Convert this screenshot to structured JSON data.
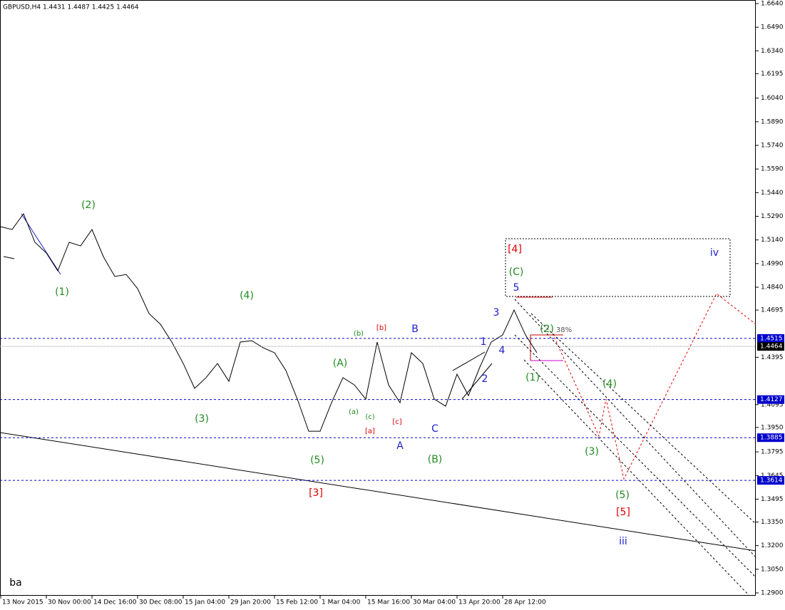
{
  "chart_data": {
    "type": "line",
    "title": "GBPUSD,H4  1.4431 1.4487 1.4425 1.4464",
    "categories": [
      "13 Nov 2015",
      null,
      null,
      null,
      "30 Nov 00:00",
      null,
      null,
      null,
      "14 Dec 16:00",
      null,
      null,
      null,
      "30 Dec 08:00",
      null,
      null,
      null,
      "15 Jan 04:00",
      null,
      null,
      null,
      "29 Jan 20:00",
      null,
      null,
      null,
      "15 Feb 12:00",
      null,
      null,
      null,
      "1 Mar 04:00",
      null,
      null,
      null,
      "15 Mar 16:00",
      null,
      null,
      null,
      "30 Mar 04:00",
      null,
      null,
      null,
      "13 Apr 20:00",
      null,
      null,
      null,
      "28 Apr 12:00",
      null,
      null,
      null,
      null,
      null,
      null,
      null,
      null,
      null,
      null,
      null,
      null,
      null,
      null,
      null,
      null,
      null,
      null,
      null,
      null,
      null
    ],
    "series": [
      {
        "name": "GBPUSD",
        "color": "#000000",
        "values": [
          1.5224,
          1.5206,
          1.5306,
          1.5125,
          1.5057,
          1.4944,
          1.5125,
          1.5102,
          1.5206,
          1.5034,
          1.4908,
          1.4921,
          1.4831,
          1.4673,
          1.4605,
          1.4492,
          1.4356,
          1.4198,
          1.4266,
          1.4356,
          1.4243,
          1.4492,
          1.4501,
          1.4456,
          1.4424,
          1.4311,
          1.413,
          1.3926,
          1.3926,
          1.4107,
          1.4266,
          1.422,
          1.413,
          1.4492,
          1.422,
          1.4107,
          1.4424,
          1.4356,
          1.413,
          1.4085,
          1.4288,
          1.4152,
          1.4333,
          1.4492,
          1.4537,
          1.4695,
          1.4537,
          1.4424,
          null,
          null,
          null,
          null,
          null,
          null,
          null,
          null,
          null,
          null,
          null,
          null,
          null,
          null,
          null,
          null,
          null,
          null
        ]
      }
    ],
    "ylim": [
      1.29,
      1.664
    ],
    "yticks": [
      {
        "value": 1.664,
        "label": "1.6640"
      },
      {
        "value": 1.649,
        "label": "1.6490"
      },
      {
        "value": 1.634,
        "label": "1.6340"
      },
      {
        "value": 1.6195,
        "label": "1.6195"
      },
      {
        "value": 1.604,
        "label": "1.6040"
      },
      {
        "value": 1.589,
        "label": "1.5890"
      },
      {
        "value": 1.574,
        "label": "1.5740"
      },
      {
        "value": 1.559,
        "label": "1.5590"
      },
      {
        "value": 1.544,
        "label": "1.5440"
      },
      {
        "value": 1.529,
        "label": "1.5290"
      },
      {
        "value": 1.514,
        "label": "1.5140"
      },
      {
        "value": 1.499,
        "label": "1.4990"
      },
      {
        "value": 1.484,
        "label": "1.4840"
      },
      {
        "value": 1.4695,
        "label": "1.4695"
      },
      {
        "value": 1.4395,
        "label": "1.4395"
      },
      {
        "value": 1.4095,
        "label": "1.4095"
      },
      {
        "value": 1.395,
        "label": "1.3950"
      },
      {
        "value": 1.3795,
        "label": "1.3795"
      },
      {
        "value": 1.3645,
        "label": "1.3645"
      },
      {
        "value": 1.3495,
        "label": "1.3495"
      },
      {
        "value": 1.335,
        "label": "1.3350"
      },
      {
        "value": 1.32,
        "label": "1.3200"
      },
      {
        "value": 1.305,
        "label": "1.3050"
      },
      {
        "value": 1.29,
        "label": "1.2900"
      }
    ],
    "levels": [
      {
        "value": 1.4515,
        "color": "#0000cc"
      },
      {
        "value": 1.4127,
        "color": "#0000cc"
      },
      {
        "value": 1.3885,
        "color": "#0000cc"
      },
      {
        "value": 1.3614,
        "color": "#0000cc"
      },
      {
        "value": 1.4464,
        "color": "#000000"
      }
    ],
    "annotations": [
      {
        "text": "(2)",
        "color": "#228b22"
      },
      {
        "text": "(1)",
        "color": "#228b22"
      },
      {
        "text": "(4)",
        "color": "#228b22"
      },
      {
        "text": "(3)",
        "color": "#228b22"
      },
      {
        "text": "(5)",
        "color": "#228b22"
      },
      {
        "text": "[3]",
        "color": "#dd0000"
      },
      {
        "text": "(A)",
        "color": "#228b22"
      },
      {
        "text": "(a)",
        "color": "#228b22"
      },
      {
        "text": "(b)",
        "color": "#228b22"
      },
      {
        "text": "(c)",
        "color": "#228b22"
      },
      {
        "text": "[b]",
        "color": "#dd0000"
      },
      {
        "text": "[a]",
        "color": "#dd0000"
      },
      {
        "text": "[c]",
        "color": "#dd0000"
      },
      {
        "text": "B",
        "color": "#1c1cd0"
      },
      {
        "text": "A",
        "color": "#1c1cd0"
      },
      {
        "text": "C",
        "color": "#1c1cd0"
      },
      {
        "text": "(B)",
        "color": "#228b22"
      },
      {
        "text": "1",
        "color": "#1c1cd0"
      },
      {
        "text": "2",
        "color": "#1c1cd0"
      },
      {
        "text": "3",
        "color": "#1c1cd0"
      },
      {
        "text": "4",
        "color": "#1c1cd0"
      },
      {
        "text": "5",
        "color": "#1c1cd0"
      },
      {
        "text": "(C)",
        "color": "#228b22"
      },
      {
        "text": "[4]",
        "color": "#dd0000"
      },
      {
        "text": "(2)",
        "color": "#228b22"
      },
      {
        "text": "38%",
        "color": "#555555"
      },
      {
        "text": "(1)",
        "color": "#228b22"
      },
      {
        "text": "(4)",
        "color": "#228b22"
      },
      {
        "text": "(3)",
        "color": "#228b22"
      },
      {
        "text": "(5)",
        "color": "#228b22"
      },
      {
        "text": "[5]",
        "color": "#dd0000"
      },
      {
        "text": "iii",
        "color": "#1c1cd0"
      },
      {
        "text": "iv",
        "color": "#1c1cd0"
      },
      {
        "text": "ba",
        "color": "#000000"
      }
    ]
  }
}
